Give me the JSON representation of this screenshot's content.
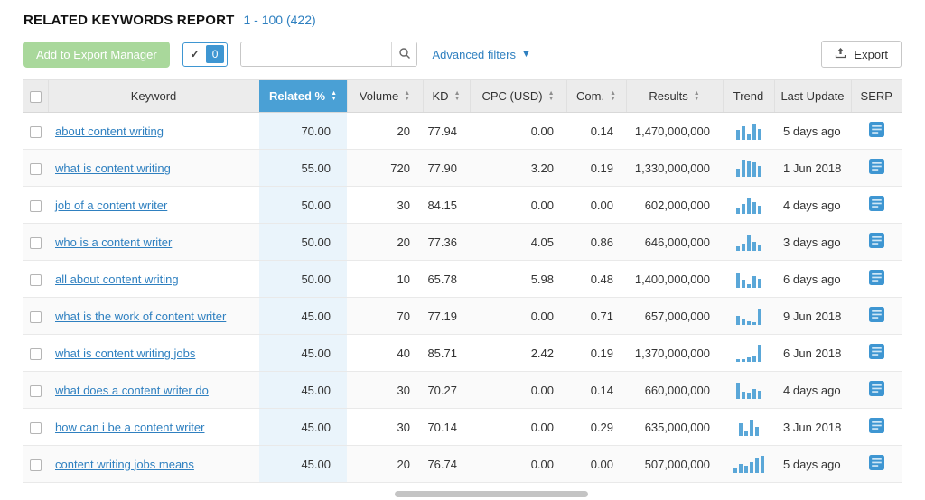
{
  "header": {
    "title": "RELATED KEYWORDS REPORT",
    "range": "1 - 100 (422)"
  },
  "toolbar": {
    "add_to_export_label": "Add to Export Manager",
    "selected_count": "0",
    "search_value": "",
    "search_placeholder": "",
    "advanced_filters_label": "Advanced filters",
    "export_label": "Export"
  },
  "table": {
    "columns": [
      "Keyword",
      "Related %",
      "Volume",
      "KD",
      "CPC (USD)",
      "Com.",
      "Results",
      "Trend",
      "Last Update",
      "SERP"
    ],
    "sorted_column": "Related %",
    "rows": [
      {
        "keyword": "about content writing",
        "related": "70.00",
        "volume": "20",
        "kd": "77.94",
        "cpc": "0.00",
        "com": "0.14",
        "results": "1,470,000,000",
        "trend": [
          0.55,
          0.75,
          0.3,
          0.9,
          0.6
        ],
        "last_update": "5 days ago"
      },
      {
        "keyword": "what is content writing",
        "related": "55.00",
        "volume": "720",
        "kd": "77.90",
        "cpc": "3.20",
        "com": "0.19",
        "results": "1,330,000,000",
        "trend": [
          0.45,
          0.95,
          0.9,
          0.85,
          0.6
        ],
        "last_update": "1 Jun 2018"
      },
      {
        "keyword": "job of a content writer",
        "related": "50.00",
        "volume": "30",
        "kd": "84.15",
        "cpc": "0.00",
        "com": "0.00",
        "results": "602,000,000",
        "trend": [
          0.3,
          0.55,
          0.9,
          0.65,
          0.45
        ],
        "last_update": "4 days ago"
      },
      {
        "keyword": "who is a content writer",
        "related": "50.00",
        "volume": "20",
        "kd": "77.36",
        "cpc": "4.05",
        "com": "0.86",
        "results": "646,000,000",
        "trend": [
          0.25,
          0.4,
          0.9,
          0.5,
          0.3
        ],
        "last_update": "3 days ago"
      },
      {
        "keyword": "all about content writing",
        "related": "50.00",
        "volume": "10",
        "kd": "65.78",
        "cpc": "5.98",
        "com": "0.48",
        "results": "1,400,000,000",
        "trend": [
          0.85,
          0.45,
          0.2,
          0.65,
          0.5
        ],
        "last_update": "6 days ago"
      },
      {
        "keyword": "what is the work of content writer",
        "related": "45.00",
        "volume": "70",
        "kd": "77.19",
        "cpc": "0.00",
        "com": "0.71",
        "results": "657,000,000",
        "trend": [
          0.5,
          0.35,
          0.2,
          0.15,
          0.9
        ],
        "last_update": "9 Jun 2018"
      },
      {
        "keyword": "what is content writing jobs",
        "related": "45.00",
        "volume": "40",
        "kd": "85.71",
        "cpc": "2.42",
        "com": "0.19",
        "results": "1,370,000,000",
        "trend": [
          0.15,
          0.15,
          0.25,
          0.3,
          0.95
        ],
        "last_update": "6 Jun 2018"
      },
      {
        "keyword": "what does a content writer do",
        "related": "45.00",
        "volume": "30",
        "kd": "70.27",
        "cpc": "0.00",
        "com": "0.14",
        "results": "660,000,000",
        "trend": [
          0.9,
          0.4,
          0.35,
          0.55,
          0.45
        ],
        "last_update": "4 days ago"
      },
      {
        "keyword": "how can i be a content writer",
        "related": "45.00",
        "volume": "30",
        "kd": "70.14",
        "cpc": "0.00",
        "com": "0.29",
        "results": "635,000,000",
        "trend": [
          0.7,
          0.25,
          0.9,
          0.5
        ],
        "last_update": "3 Jun 2018"
      },
      {
        "keyword": "content writing jobs means",
        "related": "45.00",
        "volume": "20",
        "kd": "76.74",
        "cpc": "0.00",
        "com": "0.00",
        "results": "507,000,000",
        "trend": [
          0.3,
          0.5,
          0.4,
          0.6,
          0.8,
          0.95
        ],
        "last_update": "5 days ago"
      }
    ]
  },
  "colors": {
    "accent_blue": "#3e96d2",
    "related_header_bg": "#4aa0d5",
    "related_cell_bg": "#eaf4fb",
    "link_blue": "#2f80c0",
    "export_manager_green": "#a9d89b",
    "trend_bar": "#5aa7d8"
  }
}
